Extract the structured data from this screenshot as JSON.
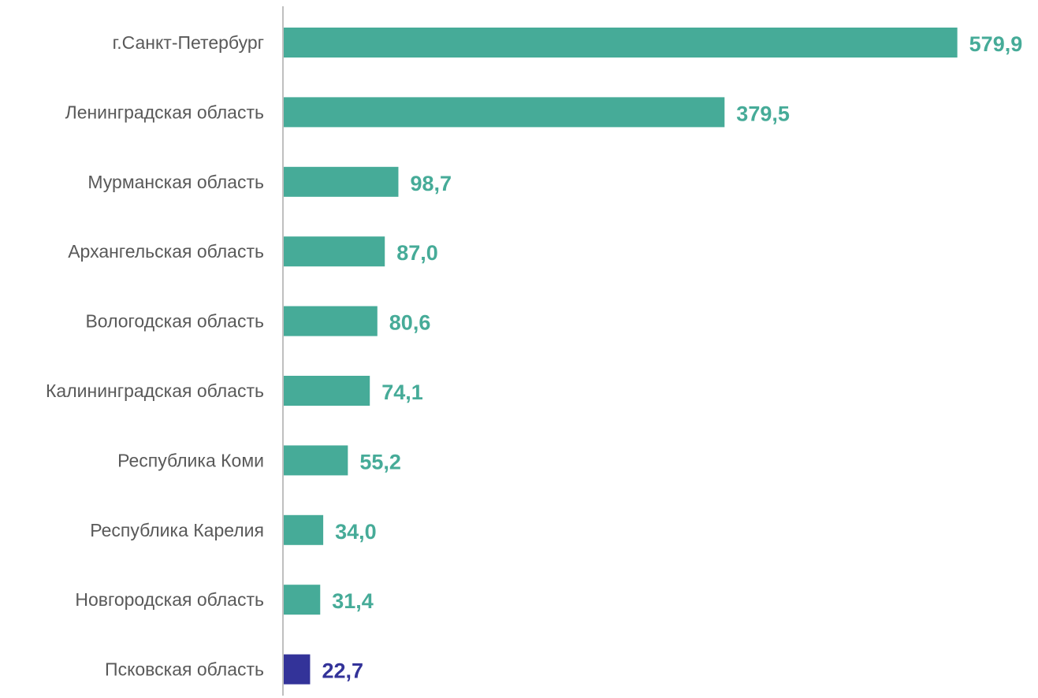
{
  "chart_data": {
    "type": "bar",
    "orientation": "horizontal",
    "categories": [
      "г.Санкт-Петербург",
      "Ленинградская область",
      "Мурманская область",
      "Архангельская область",
      "Вологодская область",
      "Калининградская область",
      "Республика Коми",
      "Республика Карелия",
      "Новгородская область",
      "Псковская область"
    ],
    "values": [
      579.9,
      379.5,
      98.7,
      87.0,
      80.6,
      74.1,
      55.2,
      34.0,
      31.4,
      22.7
    ],
    "value_labels": [
      "579,9",
      "379,5",
      "98,7",
      "87,0",
      "80,6",
      "74,1",
      "55,2",
      "34,0",
      "31,4",
      "22,7"
    ],
    "highlighted_category": "Псковская область",
    "title": "",
    "xlabel": "",
    "ylabel": "",
    "grid": false,
    "legend": "none",
    "colors": {
      "bar": "#46ab98",
      "highlight": "#333399",
      "label": "#595959",
      "axis": "#bfbfbf"
    }
  }
}
